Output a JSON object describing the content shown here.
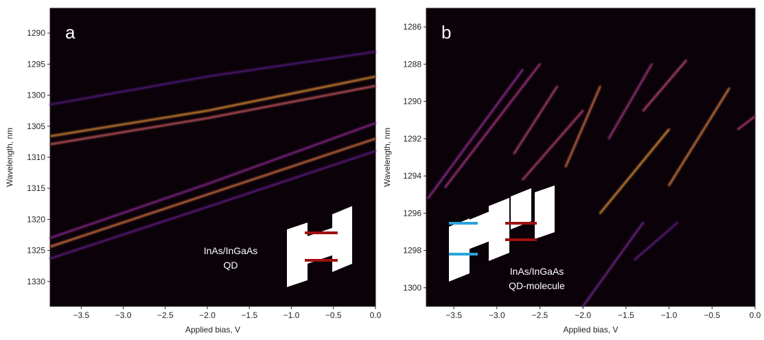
{
  "chart_data": [
    {
      "type": "heatmap",
      "panel_label": "a",
      "x_label": "Applied bias, V",
      "y_label": "Wavelength, nm",
      "annotation": [
        "InAs/InGaAs",
        "QD"
      ],
      "xlim": [
        -3.87,
        0
      ],
      "ylim": [
        1286,
        1334
      ],
      "xticks": [
        {
          "value": -3.5,
          "label": "−3.5"
        },
        {
          "value": -3.0,
          "label": "−3.0"
        },
        {
          "value": -2.5,
          "label": "−2.5"
        },
        {
          "value": -2.0,
          "label": "−2.0"
        },
        {
          "value": -1.5,
          "label": "−1.5"
        },
        {
          "value": -1.0,
          "label": "−1.0"
        },
        {
          "value": -0.5,
          "label": "−0.5"
        },
        {
          "value": 0,
          "label": "0.0"
        }
      ],
      "yticks": [
        1290,
        1295,
        1300,
        1305,
        1310,
        1315,
        1320,
        1325,
        1330
      ],
      "lines": [
        {
          "x": [
            -3.87,
            -2,
            0
          ],
          "y": [
            1301.5,
            1297,
            1293
          ],
          "color": "#5a1a8a"
        },
        {
          "x": [
            -3.87,
            -2,
            0
          ],
          "y": [
            1306.6,
            1302.5,
            1297
          ],
          "color": "#f59a3a"
        },
        {
          "x": [
            -3.87,
            -2,
            0
          ],
          "y": [
            1307.9,
            1303.7,
            1298.5
          ],
          "color": "#e0606a"
        },
        {
          "x": [
            -3.87,
            -2,
            0
          ],
          "y": [
            1323,
            1314.3,
            1304.5
          ],
          "color": "#9a2aa0"
        },
        {
          "x": [
            -3.87,
            -2,
            0
          ],
          "y": [
            1324.4,
            1316,
            1307
          ],
          "color": "#f0804a"
        },
        {
          "x": [
            -3.87,
            -2,
            0
          ],
          "y": [
            1326.3,
            1318,
            1309
          ],
          "color": "#6a1f90"
        }
      ]
    },
    {
      "type": "heatmap",
      "panel_label": "b",
      "x_label": "Applied bias, V",
      "y_label": "Wavelength, nm",
      "annotation": [
        "InAs/InGaAs",
        "QD-molecule"
      ],
      "xlim": [
        -3.82,
        0
      ],
      "ylim": [
        1285,
        1301
      ],
      "xticks": [
        {
          "value": -3.5,
          "label": "−3.5"
        },
        {
          "value": -3.0,
          "label": "−3.0"
        },
        {
          "value": -2.5,
          "label": "−2.5"
        },
        {
          "value": -2.0,
          "label": "−2.0"
        },
        {
          "value": -1.5,
          "label": "−1.5"
        },
        {
          "value": -1.0,
          "label": "−1.0"
        },
        {
          "value": -0.5,
          "label": "−0.5"
        },
        {
          "value": 0,
          "label": "0.0"
        }
      ],
      "yticks": [
        1286,
        1288,
        1290,
        1292,
        1294,
        1296,
        1298,
        1300
      ],
      "lines": [
        {
          "x": [
            -3.8,
            -2.7
          ],
          "y": [
            1295.2,
            1288.3
          ],
          "color": "#a030a0"
        },
        {
          "x": [
            -3.6,
            -2.5
          ],
          "y": [
            1294.6,
            1288
          ],
          "color": "#b83a90"
        },
        {
          "x": [
            -2.8,
            -2.3
          ],
          "y": [
            1292.8,
            1289.2
          ],
          "color": "#c04a80"
        },
        {
          "x": [
            -2.7,
            -2.0
          ],
          "y": [
            1294.2,
            1290.5
          ],
          "color": "#c8487a"
        },
        {
          "x": [
            -2.2,
            -1.8
          ],
          "y": [
            1293.5,
            1289.2
          ],
          "color": "#e87a50"
        },
        {
          "x": [
            -1.7,
            -1.2
          ],
          "y": [
            1292,
            1288
          ],
          "color": "#b03a90"
        },
        {
          "x": [
            -1.3,
            -0.8
          ],
          "y": [
            1290.5,
            1287.8
          ],
          "color": "#d0507a"
        },
        {
          "x": [
            -1.8,
            -1.0
          ],
          "y": [
            1296,
            1291.5
          ],
          "color": "#f5a040"
        },
        {
          "x": [
            -1.0,
            -0.3
          ],
          "y": [
            1294.5,
            1289.3
          ],
          "color": "#f08a45"
        },
        {
          "x": [
            -0.2,
            0
          ],
          "y": [
            1291.5,
            1290.8
          ],
          "color": "#c84080"
        },
        {
          "x": [
            -2.0,
            -1.3
          ],
          "y": [
            1301,
            1296.5
          ],
          "color": "#7a2a9a"
        },
        {
          "x": [
            -1.4,
            -0.9
          ],
          "y": [
            1298.5,
            1296.5
          ],
          "color": "#6a2090"
        }
      ]
    }
  ]
}
